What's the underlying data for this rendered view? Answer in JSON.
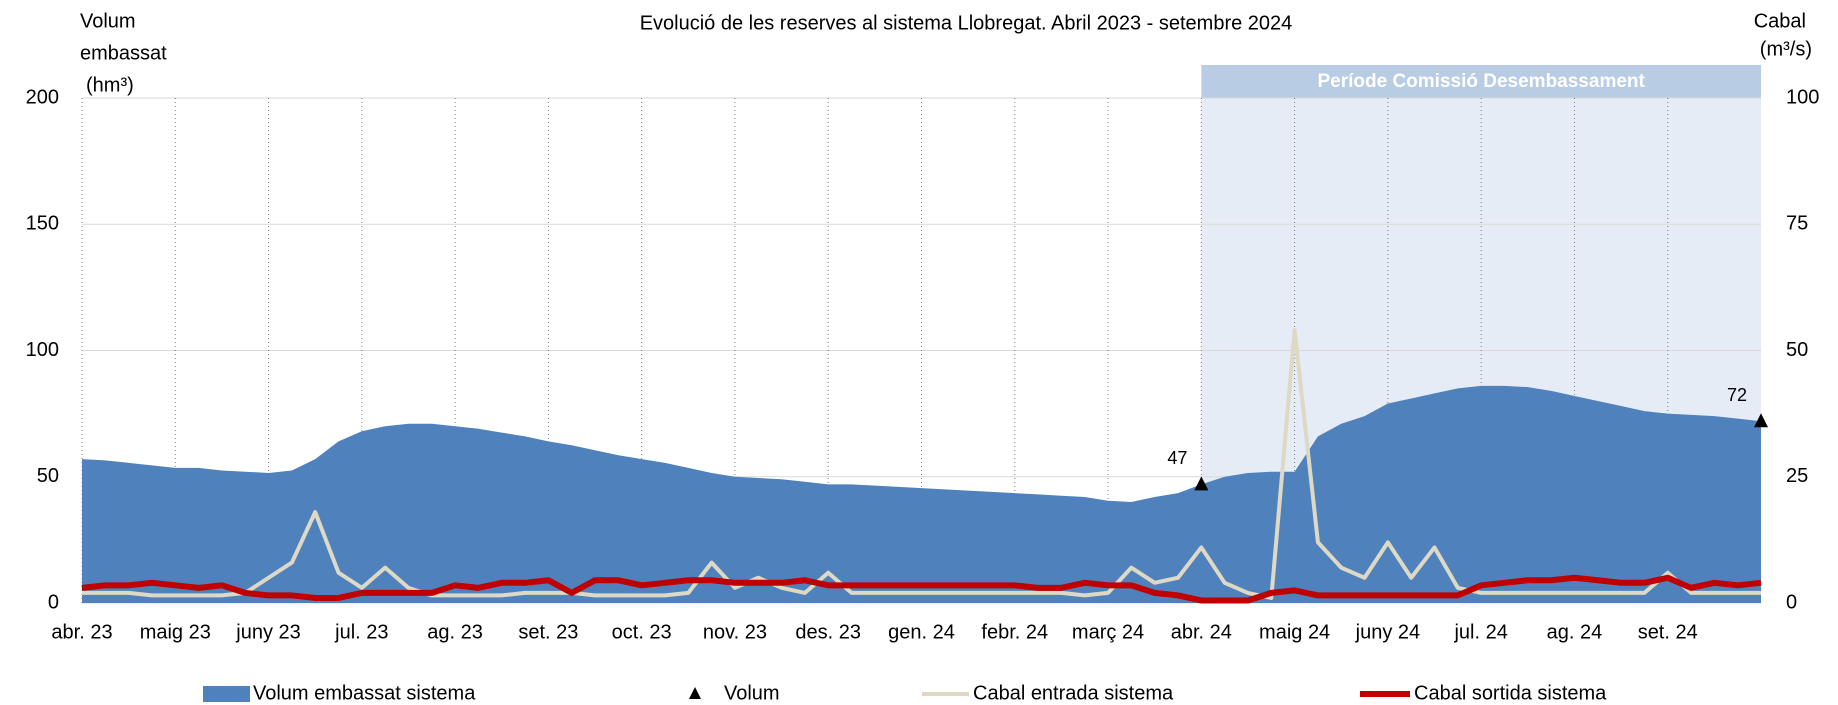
{
  "chart_data": {
    "type": "combo",
    "title": "Evolució de les reserves al sistema Llobregat. Abril 2023 - setembre 2024",
    "ylabel": [
      "Volum",
      "embassat",
      "(hm³)"
    ],
    "y2label": [
      "Cabal",
      "(m³/s)"
    ],
    "xlim": [
      0,
      18
    ],
    "xticks": [
      {
        "value": 0,
        "label": "abr. 23"
      },
      {
        "value": 1,
        "label": "maig 23"
      },
      {
        "value": 2,
        "label": "juny 23"
      },
      {
        "value": 3,
        "label": "jul. 23"
      },
      {
        "value": 4,
        "label": "ag. 23"
      },
      {
        "value": 5,
        "label": "set. 23"
      },
      {
        "value": 6,
        "label": "oct. 23"
      },
      {
        "value": 7,
        "label": "nov. 23"
      },
      {
        "value": 8,
        "label": "des. 23"
      },
      {
        "value": 9,
        "label": "gen. 24"
      },
      {
        "value": 10,
        "label": "febr. 24"
      },
      {
        "value": 11,
        "label": "març 24"
      },
      {
        "value": 12,
        "label": "abr. 24"
      },
      {
        "value": 13,
        "label": "maig 24"
      },
      {
        "value": 14,
        "label": "juny 24"
      },
      {
        "value": 15,
        "label": "jul. 24"
      },
      {
        "value": 16,
        "label": "ag. 24"
      },
      {
        "value": 17,
        "label": "set. 24"
      }
    ],
    "ylim": [
      0,
      200
    ],
    "yticks": [
      0,
      50,
      100,
      150,
      200
    ],
    "y2lim": [
      0,
      100
    ],
    "y2ticks": [
      0,
      25,
      50,
      75,
      100
    ],
    "grid": true,
    "period": {
      "label": "Període Comissió Desembassament",
      "x": [
        12,
        18
      ],
      "color": "#b8cce4",
      "fill": "#e6ecf6"
    },
    "x": [
      0,
      0.25,
      0.5,
      0.75,
      1,
      1.25,
      1.5,
      1.75,
      2,
      2.25,
      2.5,
      2.75,
      3,
      3.25,
      3.5,
      3.75,
      4,
      4.25,
      4.5,
      4.75,
      5,
      5.25,
      5.5,
      5.75,
      6,
      6.25,
      6.5,
      6.75,
      7,
      7.25,
      7.5,
      7.75,
      8,
      8.25,
      8.5,
      8.75,
      9,
      9.25,
      9.5,
      9.75,
      10,
      10.25,
      10.5,
      10.75,
      11,
      11.25,
      11.5,
      11.75,
      12,
      12.25,
      12.5,
      12.75,
      13,
      13.25,
      13.5,
      13.75,
      14,
      14.25,
      14.5,
      14.75,
      15,
      15.25,
      15.5,
      15.75,
      16,
      16.25,
      16.5,
      16.75,
      17,
      17.25,
      17.5,
      17.75,
      18
    ],
    "series": [
      {
        "name": "Volum embassat sistema",
        "type": "area",
        "axis": "y",
        "color": "#4f81bd",
        "values": [
          57,
          56.5,
          55.5,
          54.5,
          53.5,
          53.5,
          52.5,
          52,
          51.5,
          52.5,
          57,
          64,
          68,
          70,
          71,
          71,
          70,
          69,
          67.5,
          66,
          64,
          62.5,
          60.5,
          58.5,
          57,
          55.5,
          53.5,
          51.5,
          50,
          49.5,
          49,
          48,
          47,
          47,
          46.5,
          46,
          45.5,
          45,
          44.5,
          44,
          43.5,
          43,
          42.5,
          42,
          40.5,
          40,
          42,
          43.5,
          47,
          50,
          51.5,
          52,
          52,
          66,
          71,
          74,
          79,
          81,
          83,
          85,
          86,
          86,
          85.5,
          84,
          82,
          80,
          78,
          76,
          75,
          74.5,
          74,
          73,
          72
        ]
      },
      {
        "name": "Volum",
        "type": "marker",
        "axis": "y",
        "color": "#000000",
        "x": [
          12,
          18
        ],
        "values": [
          47,
          72
        ]
      },
      {
        "name": "Cabal entrada sistema",
        "type": "line",
        "axis": "y2",
        "color": "#ddd9c4",
        "values": [
          2,
          2,
          2,
          1.5,
          1.5,
          1.5,
          1.5,
          2,
          5,
          8,
          18,
          6,
          3,
          7,
          3,
          1.5,
          1.5,
          1.5,
          1.5,
          2,
          2,
          2,
          1.5,
          1.5,
          1.5,
          1.5,
          2,
          8,
          3,
          5,
          3,
          2,
          6,
          2,
          2,
          2,
          2,
          2,
          2,
          2,
          2,
          2,
          2,
          1.5,
          2,
          7,
          4,
          5,
          11,
          4,
          2,
          1,
          54,
          12,
          7,
          5,
          12,
          5,
          11,
          3,
          2,
          2,
          2,
          2,
          2,
          2,
          2,
          2,
          6,
          2,
          2,
          2,
          2
        ]
      },
      {
        "name": "Cabal sortida sistema",
        "type": "line",
        "axis": "y2",
        "color": "#c00000",
        "values": [
          3,
          3.5,
          3.5,
          4,
          3.5,
          3,
          3.5,
          2,
          1.5,
          1.5,
          1,
          1,
          2,
          2,
          2,
          2,
          3.5,
          3,
          4,
          4,
          4.5,
          2,
          4.5,
          4.5,
          3.5,
          4,
          4.5,
          4.5,
          4,
          4,
          4,
          4.5,
          3.5,
          3.5,
          3.5,
          3.5,
          3.5,
          3.5,
          3.5,
          3.5,
          3.5,
          3,
          3,
          4,
          3.5,
          3.5,
          2,
          1.5,
          0.5,
          0.5,
          0.5,
          2,
          2.5,
          1.5,
          1.5,
          1.5,
          1.5,
          1.5,
          1.5,
          1.5,
          3.5,
          4,
          4.5,
          4.5,
          5,
          4.5,
          4,
          4,
          5,
          3,
          4,
          3.5,
          4
        ]
      }
    ]
  }
}
